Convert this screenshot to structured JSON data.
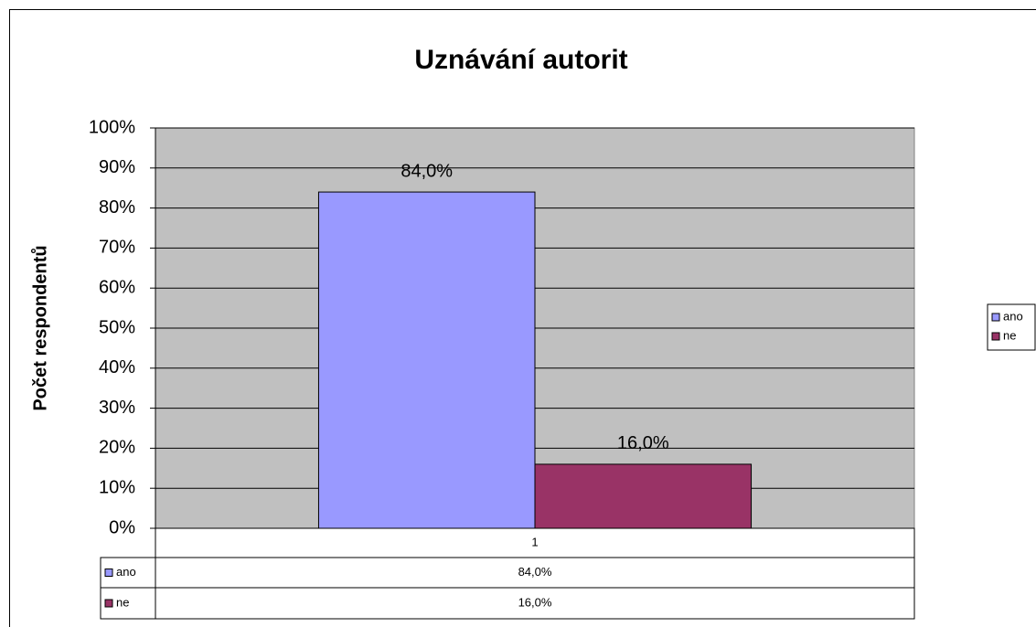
{
  "chart_data": {
    "type": "bar",
    "title": "Uznávání autorit",
    "y_label": "Počet respondentů",
    "categories": [
      "1"
    ],
    "series": [
      {
        "name": "ano",
        "color": "#9999ff",
        "values": [
          84
        ],
        "value_labels": [
          "84,0%"
        ]
      },
      {
        "name": "ne",
        "color": "#993366",
        "values": [
          16
        ],
        "value_labels": [
          "16,0%"
        ]
      }
    ],
    "ylim": [
      0,
      100
    ],
    "yticks": [
      {
        "value": 0,
        "label": "0%"
      },
      {
        "value": 10,
        "label": "10%"
      },
      {
        "value": 20,
        "label": "20%"
      },
      {
        "value": 30,
        "label": "30%"
      },
      {
        "value": 40,
        "label": "40%"
      },
      {
        "value": 50,
        "label": "50%"
      },
      {
        "value": 60,
        "label": "60%"
      },
      {
        "value": 70,
        "label": "70%"
      },
      {
        "value": 80,
        "label": "80%"
      },
      {
        "value": 90,
        "label": "90%"
      },
      {
        "value": 100,
        "label": "100%"
      }
    ],
    "grid": true,
    "legend": "right",
    "data_table": true
  }
}
